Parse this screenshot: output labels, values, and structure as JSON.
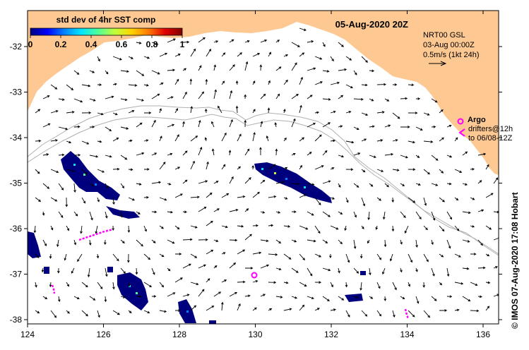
{
  "colorbar": {
    "title": "std dev of 4hr SST comp",
    "ticks": [
      "0",
      "0.2",
      "0.4",
      "0.6",
      "0.8",
      "1"
    ],
    "colors": [
      "#00007f",
      "#0000ff",
      "#0080ff",
      "#00e5ff",
      "#4dff9a",
      "#c0ff3a",
      "#ffd400",
      "#ff7a00",
      "#e00000",
      "#7f0000"
    ]
  },
  "date_title": "05-Aug-2020 20Z",
  "current_info": {
    "line1": "NRT00 GSL",
    "line2": "03-Aug 00:00Z",
    "line3": "0.5m/s (1kt 24h)"
  },
  "legend": {
    "argo_label": "Argo",
    "drifters_line1": "drifters@12h",
    "drifters_line2": "to 06/08-12Z"
  },
  "axes": {
    "x_ticks": [
      "124",
      "126",
      "128",
      "130",
      "132",
      "134",
      "136"
    ],
    "y_ticks": [
      "-32",
      "-33",
      "-34",
      "-35",
      "-36",
      "-37",
      "-38"
    ]
  },
  "credit": "© IMOS 07-Aug-2020 17:08 Hobart",
  "colors": {
    "land": "#fdc892",
    "ocean": "#ffffff",
    "drifter": "#ff00ff",
    "contour": "#b0b0b0",
    "sst_low": "#00007f"
  }
}
